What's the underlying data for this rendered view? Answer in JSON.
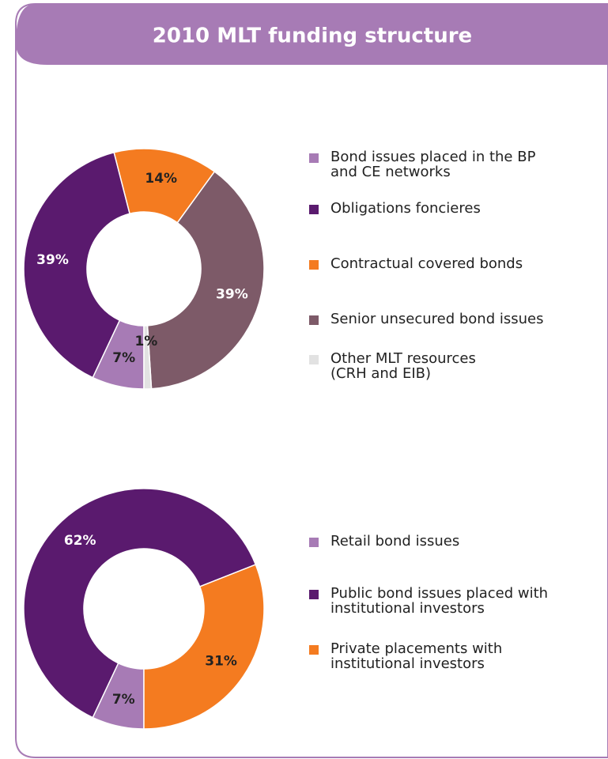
{
  "title": "2010 MLT funding structure",
  "chart_data": [
    {
      "type": "donut",
      "categories": [
        "Bond issues placed in the BP\nand CE networks",
        "Obligations foncieres",
        "Contractual covered bonds",
        "Senior unsecured bond issues",
        "Other MLT resources\n(CRH and EIB)"
      ],
      "values": [
        7,
        39,
        14,
        39,
        1
      ],
      "value_labels": [
        "7%",
        "39%",
        "14%",
        "39%",
        "1%"
      ],
      "colors": [
        "#a77bb5",
        "#5a1a6e",
        "#f47b20",
        "#7d5a68",
        "#e2e2e2"
      ],
      "label_colors": [
        "#222222",
        "#ffffff",
        "#222222",
        "#ffffff",
        "#222222"
      ]
    },
    {
      "type": "donut",
      "categories": [
        "Retail bond issues",
        "Public bond issues placed with\ninstitutional investors",
        "Private placements with\ninstitutional investors"
      ],
      "values": [
        7,
        62,
        31
      ],
      "value_labels": [
        "7%",
        "62%",
        "31%"
      ],
      "colors": [
        "#a77bb5",
        "#5a1a6e",
        "#f47b20"
      ],
      "label_colors": [
        "#222222",
        "#ffffff",
        "#222222"
      ]
    }
  ]
}
